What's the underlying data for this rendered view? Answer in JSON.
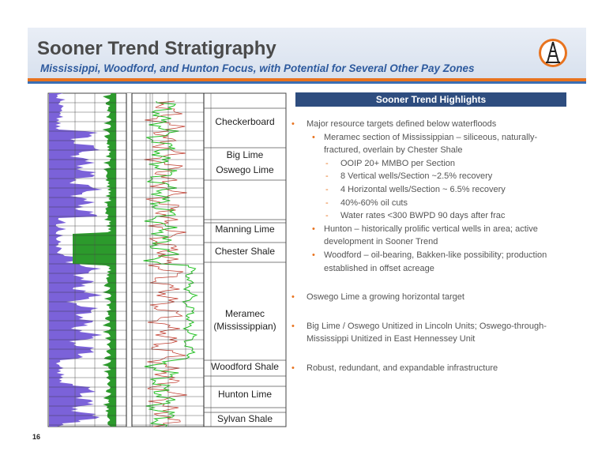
{
  "header": {
    "title": "Sooner Trend Stratigraphy",
    "subtitle": "Mississippi, Woodford, and Hunton Focus, with Potential for Several Other Pay Zones"
  },
  "formations": [
    {
      "lines": [
        "Checkerboard"
      ]
    },
    {
      "lines": [
        "Big Lime"
      ]
    },
    {
      "lines": [
        "Oswego Lime"
      ]
    },
    {
      "lines": [
        "Manning Lime"
      ]
    },
    {
      "lines": [
        "Chester Shale"
      ]
    },
    {
      "lines": [
        "Meramec",
        "(Mississippian)"
      ]
    },
    {
      "lines": [
        "Woodford Shale"
      ]
    },
    {
      "lines": [
        "Hunton Lime"
      ]
    },
    {
      "lines": [
        "Sylvan Shale"
      ]
    }
  ],
  "highlights": {
    "title": "Sooner Trend Highlights",
    "bullets": [
      {
        "text": "Major resource targets defined below waterfloods",
        "sub": [
          {
            "text": "Meramec section of Mississippian – siliceous, naturally-fractured, overlain by Chester Shale",
            "sub": [
              {
                "text": "OOIP 20+ MMBO per Section"
              },
              {
                "text": "8 Vertical wells/Section ~2.5% recovery"
              },
              {
                "text": "4 Horizontal wells/Section ~ 6.5% recovery"
              },
              {
                "text": "40%-60% oil cuts"
              },
              {
                "text": "Water rates <300 BWPD 90 days after frac"
              }
            ]
          },
          {
            "text": "Hunton – historically prolific vertical wells in area; active development in Sooner Trend"
          },
          {
            "text": "Woodford – oil-bearing, Bakken-like possibility; production established in offset acreage"
          }
        ]
      },
      {
        "text": "Oswego Lime a growing horizontal target"
      },
      {
        "text": "Big Lime / Oswego Unitized in Lincoln Units; Oswego-through-Mississippi Unitized in East Hennessey Unit"
      },
      {
        "text": "Robust, redundant, and expandable infrastructure"
      }
    ]
  },
  "page_number": "16"
}
